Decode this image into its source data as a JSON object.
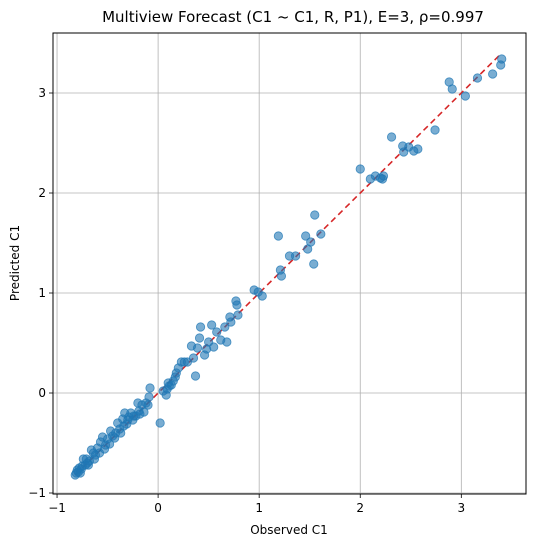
{
  "chart_data": {
    "type": "scatter",
    "title": "Multiview Forecast (C1 ~ C1, R, P1), E=3, ρ=0.997",
    "xlabel": "Observed C1",
    "ylabel": "Predicted C1",
    "xlim": [
      -1.04,
      3.64
    ],
    "ylim": [
      -1.01,
      3.6
    ],
    "xticks": [
      -1,
      0,
      1,
      2,
      3
    ],
    "yticks": [
      -1,
      0,
      1,
      2,
      3
    ],
    "grid": true,
    "colors": {
      "points": "#1f77b4",
      "reference_line": "#d62728",
      "grid": "#b0b0b0"
    },
    "reference_line": {
      "from": [
        -0.82,
        -0.82
      ],
      "to": [
        3.39,
        3.39
      ],
      "style": "dashed"
    },
    "points": [
      [
        3.4,
        3.34
      ],
      [
        3.39,
        3.28
      ],
      [
        3.31,
        3.19
      ],
      [
        3.16,
        3.15
      ],
      [
        3.04,
        2.97
      ],
      [
        2.88,
        3.11
      ],
      [
        2.91,
        3.04
      ],
      [
        2.74,
        2.63
      ],
      [
        2.57,
        2.44
      ],
      [
        2.53,
        2.42
      ],
      [
        2.48,
        2.46
      ],
      [
        2.43,
        2.41
      ],
      [
        2.42,
        2.47
      ],
      [
        2.31,
        2.56
      ],
      [
        2.23,
        2.17
      ],
      [
        2.22,
        2.14
      ],
      [
        2.2,
        2.15
      ],
      [
        2.15,
        2.17
      ],
      [
        2.1,
        2.14
      ],
      [
        2.0,
        2.24
      ],
      [
        1.61,
        1.59
      ],
      [
        1.55,
        1.78
      ],
      [
        1.54,
        1.29
      ],
      [
        1.51,
        1.51
      ],
      [
        1.48,
        1.44
      ],
      [
        1.46,
        1.57
      ],
      [
        1.36,
        1.37
      ],
      [
        1.3,
        1.37
      ],
      [
        1.22,
        1.17
      ],
      [
        1.21,
        1.23
      ],
      [
        1.19,
        1.57
      ],
      [
        1.03,
        0.97
      ],
      [
        0.99,
        1.01
      ],
      [
        0.95,
        1.03
      ],
      [
        0.79,
        0.78
      ],
      [
        0.78,
        0.88
      ],
      [
        0.77,
        0.92
      ],
      [
        0.72,
        0.71
      ],
      [
        0.71,
        0.76
      ],
      [
        0.66,
        0.66
      ],
      [
        0.68,
        0.51
      ],
      [
        0.62,
        0.53
      ],
      [
        0.58,
        0.61
      ],
      [
        0.53,
        0.68
      ],
      [
        0.55,
        0.46
      ],
      [
        0.5,
        0.51
      ],
      [
        0.48,
        0.44
      ],
      [
        0.46,
        0.38
      ],
      [
        0.42,
        0.66
      ],
      [
        0.41,
        0.55
      ],
      [
        0.39,
        0.45
      ],
      [
        0.37,
        0.17
      ],
      [
        0.35,
        0.35
      ],
      [
        0.33,
        0.47
      ],
      [
        0.29,
        0.31
      ],
      [
        0.26,
        0.31
      ],
      [
        0.23,
        0.31
      ],
      [
        0.2,
        0.25
      ],
      [
        0.17,
        0.16
      ],
      [
        0.15,
        0.12
      ],
      [
        0.13,
        0.08
      ],
      [
        0.11,
        0.07
      ],
      [
        0.09,
        0.04
      ],
      [
        0.08,
        -0.02
      ],
      [
        0.02,
        -0.3
      ],
      [
        -0.08,
        0.05
      ],
      [
        -0.09,
        -0.04
      ],
      [
        -0.12,
        -0.1
      ],
      [
        -0.14,
        -0.19
      ],
      [
        -0.16,
        -0.12
      ],
      [
        -0.18,
        -0.21
      ],
      [
        -0.2,
        -0.1
      ],
      [
        -0.22,
        -0.23
      ],
      [
        -0.25,
        -0.27
      ],
      [
        -0.27,
        -0.2
      ],
      [
        -0.29,
        -0.24
      ],
      [
        -0.31,
        -0.31
      ],
      [
        -0.33,
        -0.2
      ],
      [
        -0.35,
        -0.26
      ],
      [
        -0.38,
        -0.36
      ],
      [
        -0.4,
        -0.3
      ],
      [
        -0.42,
        -0.4
      ],
      [
        -0.45,
        -0.43
      ],
      [
        -0.47,
        -0.38
      ],
      [
        -0.5,
        -0.46
      ],
      [
        -0.52,
        -0.52
      ],
      [
        -0.55,
        -0.44
      ],
      [
        -0.57,
        -0.49
      ],
      [
        -0.6,
        -0.55
      ],
      [
        -0.62,
        -0.62
      ],
      [
        -0.64,
        -0.6
      ],
      [
        -0.66,
        -0.57
      ],
      [
        -0.68,
        -0.68
      ],
      [
        -0.7,
        -0.7
      ],
      [
        -0.72,
        -0.72
      ],
      [
        -0.74,
        -0.66
      ],
      [
        -0.76,
        -0.76
      ],
      [
        -0.78,
        -0.75
      ],
      [
        -0.79,
        -0.79
      ],
      [
        -0.81,
        -0.8
      ],
      [
        -0.82,
        -0.82
      ],
      [
        -0.8,
        -0.77
      ],
      [
        -0.77,
        -0.8
      ],
      [
        -0.75,
        -0.73
      ],
      [
        -0.71,
        -0.66
      ],
      [
        -0.69,
        -0.72
      ],
      [
        -0.63,
        -0.66
      ],
      [
        -0.58,
        -0.6
      ],
      [
        -0.53,
        -0.56
      ],
      [
        -0.48,
        -0.51
      ],
      [
        -0.43,
        -0.45
      ],
      [
        -0.37,
        -0.4
      ],
      [
        -0.34,
        -0.33
      ],
      [
        -0.3,
        -0.27
      ],
      [
        -0.24,
        -0.23
      ],
      [
        -0.19,
        -0.18
      ],
      [
        -0.1,
        -0.12
      ],
      [
        0.05,
        0.02
      ],
      [
        0.1,
        0.1
      ],
      [
        0.18,
        0.2
      ]
    ]
  }
}
